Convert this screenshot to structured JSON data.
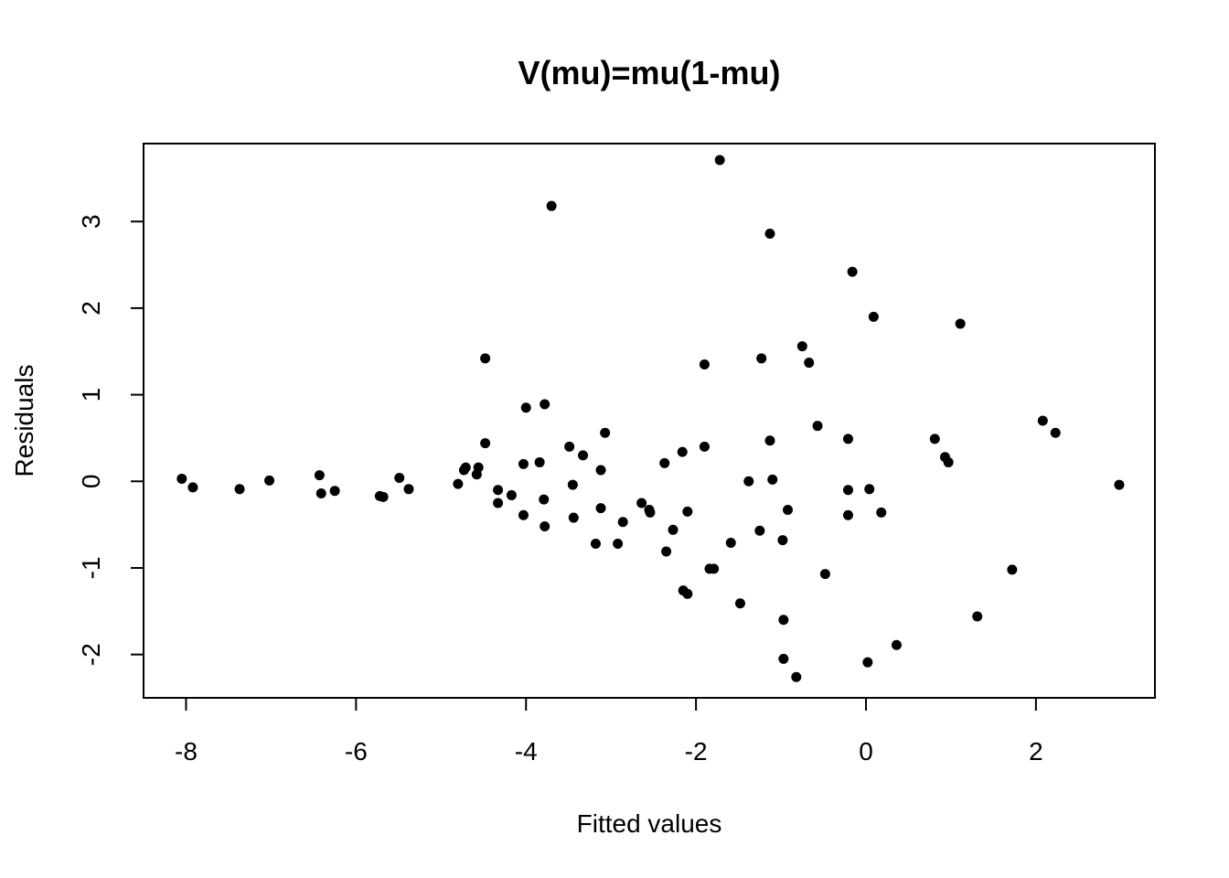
{
  "chart_data": {
    "type": "scatter",
    "title": "V(mu)=mu(1-mu)",
    "xlabel": "Fitted values",
    "ylabel": "Residuals",
    "xlim": [
      -8.5,
      3.4
    ],
    "ylim": [
      -2.5,
      3.9
    ],
    "x_ticks": [
      -8,
      -6,
      -4,
      -2,
      0,
      2
    ],
    "x_tick_labels": [
      "-8",
      "-6",
      "-4",
      "-2",
      "0",
      "2"
    ],
    "y_ticks": [
      -2,
      -1,
      0,
      1,
      2,
      3
    ],
    "y_tick_labels": [
      "-2",
      "-1",
      "0",
      "1",
      "2",
      "3"
    ],
    "grid": false,
    "marker_color": "#000000",
    "points": [
      {
        "x": -8.05,
        "y": 0.03
      },
      {
        "x": -7.92,
        "y": -0.07
      },
      {
        "x": -7.37,
        "y": -0.09
      },
      {
        "x": -7.02,
        "y": 0.01
      },
      {
        "x": -6.43,
        "y": 0.07
      },
      {
        "x": -6.41,
        "y": -0.14
      },
      {
        "x": -6.25,
        "y": -0.11
      },
      {
        "x": -5.72,
        "y": -0.17
      },
      {
        "x": -5.68,
        "y": -0.18
      },
      {
        "x": -5.49,
        "y": 0.04
      },
      {
        "x": -5.38,
        "y": -0.09
      },
      {
        "x": -4.8,
        "y": -0.03
      },
      {
        "x": -4.73,
        "y": 0.13
      },
      {
        "x": -4.71,
        "y": 0.16
      },
      {
        "x": -4.58,
        "y": 0.08
      },
      {
        "x": -4.56,
        "y": 0.16
      },
      {
        "x": -4.48,
        "y": 1.42
      },
      {
        "x": -4.48,
        "y": 0.44
      },
      {
        "x": -4.33,
        "y": -0.1
      },
      {
        "x": -4.33,
        "y": -0.25
      },
      {
        "x": -4.17,
        "y": -0.16
      },
      {
        "x": -4.03,
        "y": 0.2
      },
      {
        "x": -4.03,
        "y": -0.39
      },
      {
        "x": -4.0,
        "y": 0.85
      },
      {
        "x": -3.84,
        "y": 0.22
      },
      {
        "x": -3.79,
        "y": -0.21
      },
      {
        "x": -3.78,
        "y": 0.89
      },
      {
        "x": -3.78,
        "y": -0.52
      },
      {
        "x": -3.7,
        "y": 3.18
      },
      {
        "x": -3.49,
        "y": 0.4
      },
      {
        "x": -3.45,
        "y": -0.04
      },
      {
        "x": -3.44,
        "y": -0.42
      },
      {
        "x": -3.33,
        "y": 0.3
      },
      {
        "x": -3.18,
        "y": -0.72
      },
      {
        "x": -3.12,
        "y": 0.13
      },
      {
        "x": -3.12,
        "y": -0.31
      },
      {
        "x": -3.07,
        "y": 0.56
      },
      {
        "x": -2.92,
        "y": -0.72
      },
      {
        "x": -2.86,
        "y": -0.47
      },
      {
        "x": -2.64,
        "y": -0.25
      },
      {
        "x": -2.55,
        "y": -0.33
      },
      {
        "x": -2.54,
        "y": -0.36
      },
      {
        "x": -2.37,
        "y": 0.21
      },
      {
        "x": -2.35,
        "y": -0.81
      },
      {
        "x": -2.27,
        "y": -0.56
      },
      {
        "x": -2.16,
        "y": 0.34
      },
      {
        "x": -2.15,
        "y": -1.26
      },
      {
        "x": -2.1,
        "y": -1.3
      },
      {
        "x": -2.1,
        "y": -0.35
      },
      {
        "x": -1.9,
        "y": 1.35
      },
      {
        "x": -1.9,
        "y": 0.4
      },
      {
        "x": -1.84,
        "y": -1.01
      },
      {
        "x": -1.79,
        "y": -1.01
      },
      {
        "x": -1.72,
        "y": 3.71
      },
      {
        "x": -1.59,
        "y": -0.71
      },
      {
        "x": -1.48,
        "y": -1.41
      },
      {
        "x": -1.38,
        "y": 0.0
      },
      {
        "x": -1.25,
        "y": -0.57
      },
      {
        "x": -1.23,
        "y": 1.42
      },
      {
        "x": -1.13,
        "y": 2.86
      },
      {
        "x": -1.13,
        "y": 0.47
      },
      {
        "x": -1.1,
        "y": 0.02
      },
      {
        "x": -0.98,
        "y": -0.68
      },
      {
        "x": -0.97,
        "y": -1.6
      },
      {
        "x": -0.97,
        "y": -2.05
      },
      {
        "x": -0.92,
        "y": -0.33
      },
      {
        "x": -0.82,
        "y": -2.26
      },
      {
        "x": -0.75,
        "y": 1.56
      },
      {
        "x": -0.67,
        "y": 1.37
      },
      {
        "x": -0.57,
        "y": 0.64
      },
      {
        "x": -0.48,
        "y": -1.07
      },
      {
        "x": -0.21,
        "y": 0.49
      },
      {
        "x": -0.21,
        "y": -0.1
      },
      {
        "x": -0.21,
        "y": -0.39
      },
      {
        "x": -0.16,
        "y": 2.42
      },
      {
        "x": 0.02,
        "y": -2.09
      },
      {
        "x": 0.04,
        "y": -0.09
      },
      {
        "x": 0.09,
        "y": 1.9
      },
      {
        "x": 0.18,
        "y": -0.36
      },
      {
        "x": 0.36,
        "y": -1.89
      },
      {
        "x": 0.81,
        "y": 0.49
      },
      {
        "x": 0.93,
        "y": 0.28
      },
      {
        "x": 0.97,
        "y": 0.22
      },
      {
        "x": 1.11,
        "y": 1.82
      },
      {
        "x": 1.31,
        "y": -1.56
      },
      {
        "x": 1.72,
        "y": -1.02
      },
      {
        "x": 2.08,
        "y": 0.7
      },
      {
        "x": 2.23,
        "y": 0.56
      },
      {
        "x": 2.98,
        "y": -0.04
      }
    ]
  }
}
